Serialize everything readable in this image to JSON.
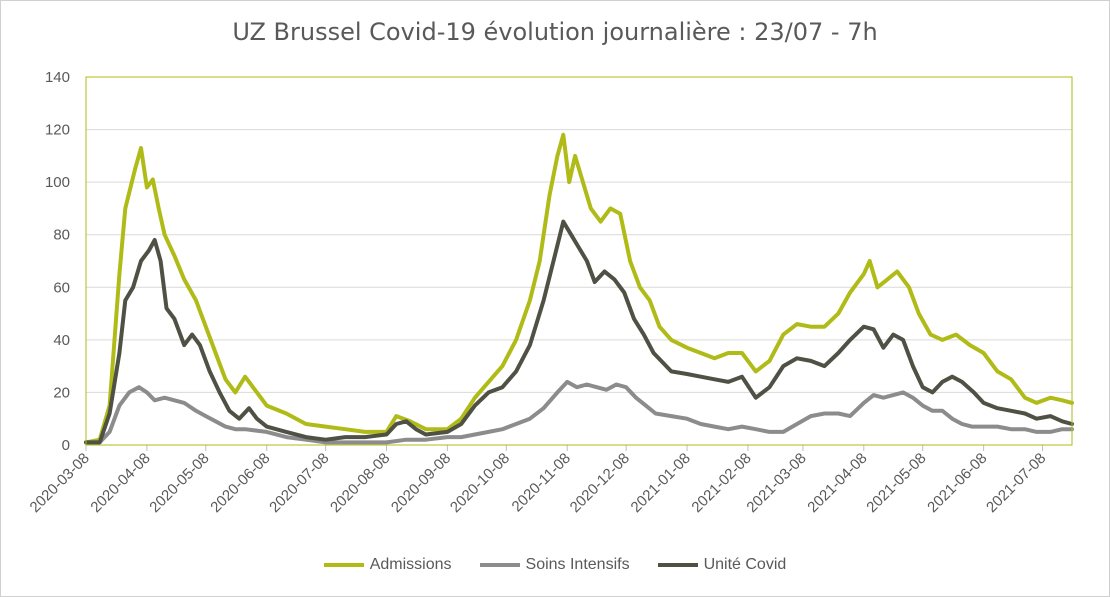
{
  "chart_data": {
    "type": "line",
    "title": "UZ Brussel Covid-19 évolution journalière : 23/07 - 7h",
    "xlabel": "",
    "ylabel": "",
    "ylim": [
      0,
      140
    ],
    "yticks": [
      "0",
      "20",
      "40",
      "60",
      "80",
      "100",
      "120",
      "140"
    ],
    "x_start": "2020-03-08",
    "x_end": "2021-07-23",
    "xticks": [
      "2020-03-08",
      "2020-04-08",
      "2020-05-08",
      "2020-06-08",
      "2020-07-08",
      "2020-08-08",
      "2020-09-08",
      "2020-10-08",
      "2020-11-08",
      "2020-12-08",
      "2021-01-08",
      "2021-02-08",
      "2021-03-08",
      "2021-04-08",
      "2021-05-08",
      "2021-06-08",
      "2021-07-08"
    ],
    "legend_position": "bottom",
    "grid": "horizontal",
    "series": [
      {
        "name": "Admissions",
        "color": "#b0bb18",
        "points": [
          [
            "2020-03-08",
            1
          ],
          [
            "2020-03-15",
            2
          ],
          [
            "2020-03-20",
            15
          ],
          [
            "2020-03-25",
            65
          ],
          [
            "2020-03-28",
            90
          ],
          [
            "2020-04-02",
            105
          ],
          [
            "2020-04-05",
            113
          ],
          [
            "2020-04-08",
            98
          ],
          [
            "2020-04-11",
            101
          ],
          [
            "2020-04-14",
            90
          ],
          [
            "2020-04-17",
            80
          ],
          [
            "2020-04-22",
            72
          ],
          [
            "2020-04-27",
            63
          ],
          [
            "2020-05-03",
            55
          ],
          [
            "2020-05-08",
            45
          ],
          [
            "2020-05-13",
            35
          ],
          [
            "2020-05-18",
            25
          ],
          [
            "2020-05-23",
            20
          ],
          [
            "2020-05-28",
            26
          ],
          [
            "2020-06-03",
            20
          ],
          [
            "2020-06-08",
            15
          ],
          [
            "2020-06-18",
            12
          ],
          [
            "2020-06-28",
            8
          ],
          [
            "2020-07-08",
            7
          ],
          [
            "2020-07-18",
            6
          ],
          [
            "2020-07-28",
            5
          ],
          [
            "2020-08-08",
            5
          ],
          [
            "2020-08-13",
            11
          ],
          [
            "2020-08-20",
            9
          ],
          [
            "2020-08-28",
            6
          ],
          [
            "2020-09-08",
            6
          ],
          [
            "2020-09-15",
            10
          ],
          [
            "2020-09-22",
            18
          ],
          [
            "2020-09-29",
            24
          ],
          [
            "2020-10-06",
            30
          ],
          [
            "2020-10-13",
            40
          ],
          [
            "2020-10-20",
            55
          ],
          [
            "2020-10-25",
            70
          ],
          [
            "2020-10-30",
            95
          ],
          [
            "2020-11-03",
            110
          ],
          [
            "2020-11-06",
            118
          ],
          [
            "2020-11-09",
            100
          ],
          [
            "2020-11-12",
            110
          ],
          [
            "2020-11-16",
            100
          ],
          [
            "2020-11-20",
            90
          ],
          [
            "2020-11-25",
            85
          ],
          [
            "2020-11-30",
            90
          ],
          [
            "2020-12-05",
            88
          ],
          [
            "2020-12-10",
            70
          ],
          [
            "2020-12-15",
            60
          ],
          [
            "2020-12-20",
            55
          ],
          [
            "2020-12-25",
            45
          ],
          [
            "2020-12-31",
            40
          ],
          [
            "2021-01-08",
            37
          ],
          [
            "2021-01-15",
            35
          ],
          [
            "2021-01-22",
            33
          ],
          [
            "2021-01-29",
            35
          ],
          [
            "2021-02-05",
            35
          ],
          [
            "2021-02-12",
            28
          ],
          [
            "2021-02-19",
            32
          ],
          [
            "2021-02-26",
            42
          ],
          [
            "2021-03-05",
            46
          ],
          [
            "2021-03-12",
            45
          ],
          [
            "2021-03-19",
            45
          ],
          [
            "2021-03-26",
            50
          ],
          [
            "2021-04-01",
            58
          ],
          [
            "2021-04-08",
            65
          ],
          [
            "2021-04-11",
            70
          ],
          [
            "2021-04-15",
            60
          ],
          [
            "2021-04-20",
            63
          ],
          [
            "2021-04-25",
            66
          ],
          [
            "2021-05-01",
            60
          ],
          [
            "2021-05-06",
            50
          ],
          [
            "2021-05-12",
            42
          ],
          [
            "2021-05-18",
            40
          ],
          [
            "2021-05-25",
            42
          ],
          [
            "2021-06-01",
            38
          ],
          [
            "2021-06-08",
            35
          ],
          [
            "2021-06-15",
            28
          ],
          [
            "2021-06-22",
            25
          ],
          [
            "2021-06-29",
            18
          ],
          [
            "2021-07-05",
            16
          ],
          [
            "2021-07-12",
            18
          ],
          [
            "2021-07-18",
            17
          ],
          [
            "2021-07-23",
            16
          ]
        ]
      },
      {
        "name": "Soins Intensifs",
        "color": "#8c8c8c",
        "points": [
          [
            "2020-03-08",
            1
          ],
          [
            "2020-03-15",
            1
          ],
          [
            "2020-03-20",
            5
          ],
          [
            "2020-03-25",
            15
          ],
          [
            "2020-03-30",
            20
          ],
          [
            "2020-04-04",
            22
          ],
          [
            "2020-04-08",
            20
          ],
          [
            "2020-04-12",
            17
          ],
          [
            "2020-04-17",
            18
          ],
          [
            "2020-04-22",
            17
          ],
          [
            "2020-04-27",
            16
          ],
          [
            "2020-05-03",
            13
          ],
          [
            "2020-05-08",
            11
          ],
          [
            "2020-05-13",
            9
          ],
          [
            "2020-05-18",
            7
          ],
          [
            "2020-05-23",
            6
          ],
          [
            "2020-05-28",
            6
          ],
          [
            "2020-06-08",
            5
          ],
          [
            "2020-06-18",
            3
          ],
          [
            "2020-06-28",
            2
          ],
          [
            "2020-07-08",
            1
          ],
          [
            "2020-07-18",
            1
          ],
          [
            "2020-07-28",
            1
          ],
          [
            "2020-08-08",
            1
          ],
          [
            "2020-08-18",
            2
          ],
          [
            "2020-08-28",
            2
          ],
          [
            "2020-09-08",
            3
          ],
          [
            "2020-09-15",
            3
          ],
          [
            "2020-09-22",
            4
          ],
          [
            "2020-09-29",
            5
          ],
          [
            "2020-10-06",
            6
          ],
          [
            "2020-10-13",
            8
          ],
          [
            "2020-10-20",
            10
          ],
          [
            "2020-10-27",
            14
          ],
          [
            "2020-11-03",
            20
          ],
          [
            "2020-11-08",
            24
          ],
          [
            "2020-11-13",
            22
          ],
          [
            "2020-11-18",
            23
          ],
          [
            "2020-11-23",
            22
          ],
          [
            "2020-11-28",
            21
          ],
          [
            "2020-12-03",
            23
          ],
          [
            "2020-12-08",
            22
          ],
          [
            "2020-12-13",
            18
          ],
          [
            "2020-12-18",
            15
          ],
          [
            "2020-12-23",
            12
          ],
          [
            "2020-12-31",
            11
          ],
          [
            "2021-01-08",
            10
          ],
          [
            "2021-01-15",
            8
          ],
          [
            "2021-01-22",
            7
          ],
          [
            "2021-01-29",
            6
          ],
          [
            "2021-02-05",
            7
          ],
          [
            "2021-02-12",
            6
          ],
          [
            "2021-02-19",
            5
          ],
          [
            "2021-02-26",
            5
          ],
          [
            "2021-03-05",
            8
          ],
          [
            "2021-03-12",
            11
          ],
          [
            "2021-03-19",
            12
          ],
          [
            "2021-03-26",
            12
          ],
          [
            "2021-04-01",
            11
          ],
          [
            "2021-04-08",
            16
          ],
          [
            "2021-04-13",
            19
          ],
          [
            "2021-04-18",
            18
          ],
          [
            "2021-04-23",
            19
          ],
          [
            "2021-04-28",
            20
          ],
          [
            "2021-05-03",
            18
          ],
          [
            "2021-05-08",
            15
          ],
          [
            "2021-05-13",
            13
          ],
          [
            "2021-05-18",
            13
          ],
          [
            "2021-05-23",
            10
          ],
          [
            "2021-05-28",
            8
          ],
          [
            "2021-06-02",
            7
          ],
          [
            "2021-06-08",
            7
          ],
          [
            "2021-06-15",
            7
          ],
          [
            "2021-06-22",
            6
          ],
          [
            "2021-06-29",
            6
          ],
          [
            "2021-07-05",
            5
          ],
          [
            "2021-07-12",
            5
          ],
          [
            "2021-07-18",
            6
          ],
          [
            "2021-07-23",
            6
          ]
        ]
      },
      {
        "name": "Unité Covid",
        "color": "#4f5144",
        "points": [
          [
            "2020-03-08",
            1
          ],
          [
            "2020-03-15",
            1
          ],
          [
            "2020-03-20",
            12
          ],
          [
            "2020-03-25",
            35
          ],
          [
            "2020-03-28",
            55
          ],
          [
            "2020-04-01",
            60
          ],
          [
            "2020-04-05",
            70
          ],
          [
            "2020-04-09",
            74
          ],
          [
            "2020-04-12",
            78
          ],
          [
            "2020-04-15",
            70
          ],
          [
            "2020-04-18",
            52
          ],
          [
            "2020-04-22",
            48
          ],
          [
            "2020-04-27",
            38
          ],
          [
            "2020-05-01",
            42
          ],
          [
            "2020-05-05",
            38
          ],
          [
            "2020-05-10",
            28
          ],
          [
            "2020-05-15",
            20
          ],
          [
            "2020-05-20",
            13
          ],
          [
            "2020-05-25",
            10
          ],
          [
            "2020-05-30",
            14
          ],
          [
            "2020-06-03",
            10
          ],
          [
            "2020-06-08",
            7
          ],
          [
            "2020-06-18",
            5
          ],
          [
            "2020-06-28",
            3
          ],
          [
            "2020-07-08",
            2
          ],
          [
            "2020-07-18",
            3
          ],
          [
            "2020-07-28",
            3
          ],
          [
            "2020-08-08",
            4
          ],
          [
            "2020-08-13",
            8
          ],
          [
            "2020-08-18",
            9
          ],
          [
            "2020-08-23",
            6
          ],
          [
            "2020-08-28",
            4
          ],
          [
            "2020-09-08",
            5
          ],
          [
            "2020-09-15",
            8
          ],
          [
            "2020-09-22",
            15
          ],
          [
            "2020-09-29",
            20
          ],
          [
            "2020-10-06",
            22
          ],
          [
            "2020-10-13",
            28
          ],
          [
            "2020-10-20",
            38
          ],
          [
            "2020-10-27",
            55
          ],
          [
            "2020-11-01",
            70
          ],
          [
            "2020-11-06",
            85
          ],
          [
            "2020-11-10",
            80
          ],
          [
            "2020-11-14",
            75
          ],
          [
            "2020-11-18",
            70
          ],
          [
            "2020-11-22",
            62
          ],
          [
            "2020-11-27",
            66
          ],
          [
            "2020-12-02",
            63
          ],
          [
            "2020-12-07",
            58
          ],
          [
            "2020-12-12",
            48
          ],
          [
            "2020-12-17",
            42
          ],
          [
            "2020-12-22",
            35
          ],
          [
            "2020-12-31",
            28
          ],
          [
            "2021-01-08",
            27
          ],
          [
            "2021-01-15",
            26
          ],
          [
            "2021-01-22",
            25
          ],
          [
            "2021-01-29",
            24
          ],
          [
            "2021-02-05",
            26
          ],
          [
            "2021-02-12",
            18
          ],
          [
            "2021-02-19",
            22
          ],
          [
            "2021-02-26",
            30
          ],
          [
            "2021-03-05",
            33
          ],
          [
            "2021-03-12",
            32
          ],
          [
            "2021-03-19",
            30
          ],
          [
            "2021-03-26",
            35
          ],
          [
            "2021-04-01",
            40
          ],
          [
            "2021-04-08",
            45
          ],
          [
            "2021-04-13",
            44
          ],
          [
            "2021-04-18",
            37
          ],
          [
            "2021-04-23",
            42
          ],
          [
            "2021-04-28",
            40
          ],
          [
            "2021-05-03",
            30
          ],
          [
            "2021-05-08",
            22
          ],
          [
            "2021-05-13",
            20
          ],
          [
            "2021-05-18",
            24
          ],
          [
            "2021-05-23",
            26
          ],
          [
            "2021-05-28",
            24
          ],
          [
            "2021-06-03",
            20
          ],
          [
            "2021-06-08",
            16
          ],
          [
            "2021-06-15",
            14
          ],
          [
            "2021-06-22",
            13
          ],
          [
            "2021-06-29",
            12
          ],
          [
            "2021-07-05",
            10
          ],
          [
            "2021-07-12",
            11
          ],
          [
            "2021-07-18",
            9
          ],
          [
            "2021-07-23",
            8
          ]
        ]
      }
    ]
  }
}
